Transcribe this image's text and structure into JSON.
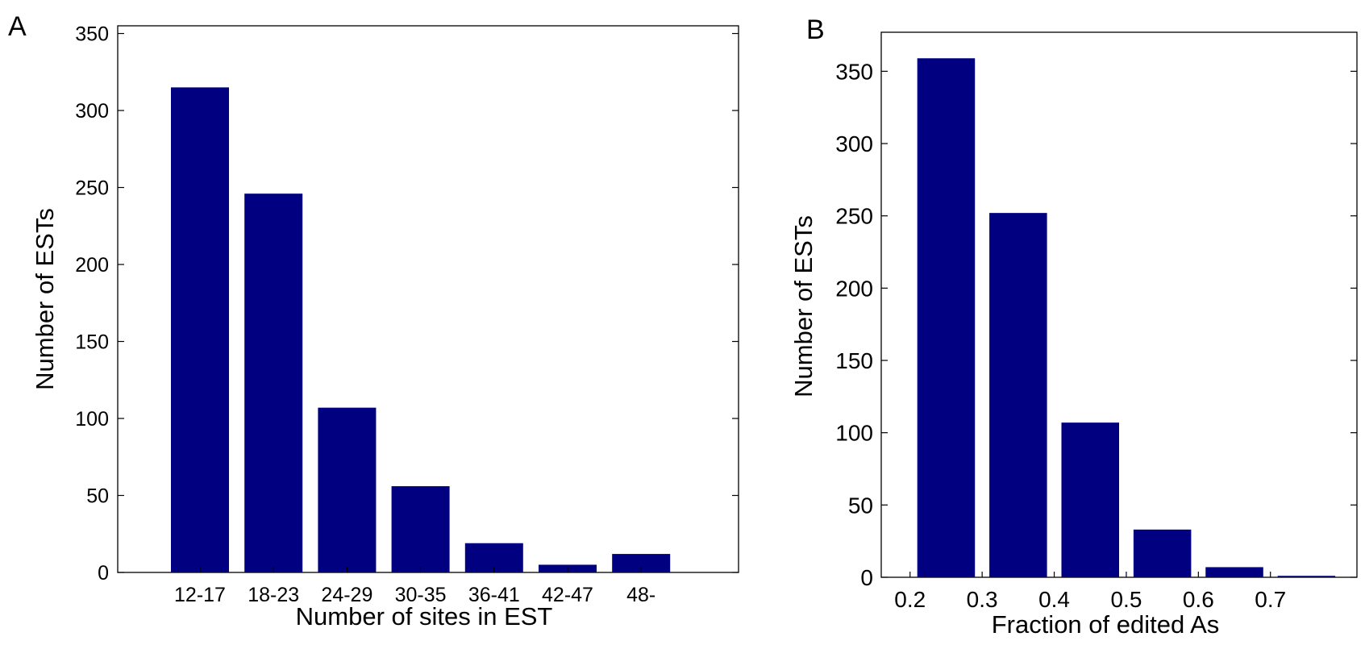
{
  "chart_data": [
    {
      "panel": "A",
      "type": "bar",
      "xlabel": "Number of sites in EST",
      "ylabel": "Number of ESTs",
      "categories": [
        "12-17",
        "18-23",
        "24-29",
        "30-35",
        "36-41",
        "42-47",
        "48-"
      ],
      "values": [
        315,
        246,
        107,
        56,
        19,
        5,
        12
      ],
      "ylim": [
        0,
        355
      ],
      "yticks": [
        0,
        50,
        100,
        150,
        200,
        250,
        300,
        350
      ],
      "bar_color": "#000080",
      "grid": false,
      "legend": "none"
    },
    {
      "panel": "B",
      "type": "bar",
      "xlabel": "Fraction of edited As",
      "ylabel": "Number of ESTs",
      "x": [
        0.25,
        0.35,
        0.45,
        0.55,
        0.65,
        0.75
      ],
      "values": [
        359,
        252,
        107,
        33,
        7,
        1
      ],
      "xlim": [
        0.16,
        0.82
      ],
      "xticks": [
        0.2,
        0.3,
        0.4,
        0.5,
        0.6,
        0.7
      ],
      "xtick_labels": [
        "0.2",
        "0.3",
        "0.4",
        "0.5",
        "0.6",
        "0.7"
      ],
      "ylim": [
        0,
        377
      ],
      "yticks": [
        0,
        50,
        100,
        150,
        200,
        250,
        300,
        350
      ],
      "bar_color": "#000080",
      "grid": false,
      "legend": "none"
    }
  ]
}
